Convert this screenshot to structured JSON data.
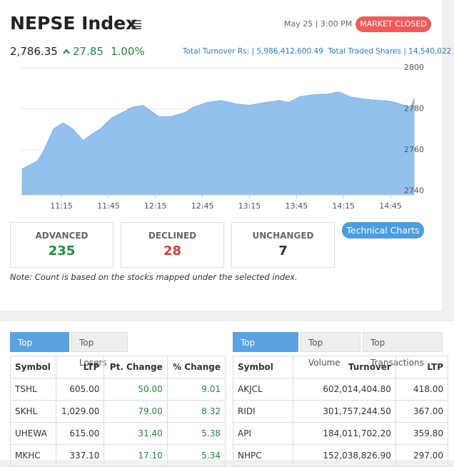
{
  "header": {
    "title": "NEPSE Index",
    "date": "May 25 | 3:00 PM",
    "status": "MARKET CLOSED",
    "index_value": "2,786.35",
    "change": "27.85",
    "percent_change": "1.00%",
    "turnover_label": "Total Turnover Rs: |",
    "turnover": "5,986,412,600.49",
    "shares_label": "Total Traded Shares |",
    "shares": "14,540,022"
  },
  "chart_data": {
    "type": "area",
    "color": "#92c1ee",
    "line_color": "#7fb3e6",
    "grid": true,
    "x": [
      650,
      660,
      664,
      670,
      676,
      682,
      689,
      693,
      700,
      707,
      714,
      720,
      727,
      732,
      737,
      745,
      754,
      759,
      768,
      777,
      786,
      795,
      805,
      814,
      820,
      827,
      836,
      845,
      852,
      859,
      868,
      877,
      884,
      891,
      898,
      900
    ],
    "values": [
      2750.7,
      2754.8,
      2760,
      2770.3,
      2773.1,
      2770.3,
      2764.5,
      2766.9,
      2770.3,
      2775.5,
      2778.3,
      2780.7,
      2781.7,
      2779,
      2776.2,
      2776.2,
      2778.3,
      2780.7,
      2783.1,
      2784.1,
      2782.4,
      2781.7,
      2783.1,
      2784.1,
      2783.1,
      2785.9,
      2786.9,
      2787.2,
      2788.3,
      2785.9,
      2784.8,
      2784.1,
      2783.8,
      2782.4,
      2780.7,
      2785
    ],
    "xlim": [
      649,
      900
    ],
    "ylim": [
      2738,
      2800
    ],
    "xticks": [
      {
        "value": 675,
        "label": "11:15"
      },
      {
        "value": 705,
        "label": "11:45"
      },
      {
        "value": 735,
        "label": "12:15"
      },
      {
        "value": 765,
        "label": "12:45"
      },
      {
        "value": 795,
        "label": "13:15"
      },
      {
        "value": 825,
        "label": "13:45"
      },
      {
        "value": 855,
        "label": "14:15"
      },
      {
        "value": 885,
        "label": "14:45"
      }
    ],
    "yticks": [
      2740,
      2760,
      2780,
      2800
    ]
  },
  "summary": {
    "items": [
      {
        "label": "ADVANCED",
        "value": "235"
      },
      {
        "label": "DECLINED",
        "value": "28"
      },
      {
        "label": "UNCHANGED",
        "value": "7"
      }
    ],
    "button": "Technical Charts",
    "note": "Note: Count is based on the stocks mapped under the selected index."
  },
  "gainers": {
    "tabs": [
      "Top Gainers",
      "Top Losers"
    ],
    "columns": [
      "Symbol",
      "LTP",
      "Pt. Change",
      "% Change"
    ],
    "rows": [
      [
        "TSHL",
        "605.00",
        "50.00",
        "9.01"
      ],
      [
        "SKHL",
        "1,029.00",
        "79.00",
        "8.32"
      ],
      [
        "UHEWA",
        "615.00",
        "31.40",
        "5.38"
      ],
      [
        "MKHC",
        "337.10",
        "17.10",
        "5.34"
      ]
    ]
  },
  "turnover": {
    "tabs": [
      "Top Turnover",
      "Top Volume",
      "Top Transactions"
    ],
    "columns": [
      "Symbol",
      "Turnover",
      "LTP"
    ],
    "rows": [
      [
        "AKJCL",
        "602,014,404.80",
        "418.00"
      ],
      [
        "RIDI",
        "301,757,244.50",
        "367.00"
      ],
      [
        "API",
        "184,011,702.20",
        "359.80"
      ],
      [
        "NHPC",
        "152,038,826.90",
        "297.00"
      ]
    ]
  }
}
